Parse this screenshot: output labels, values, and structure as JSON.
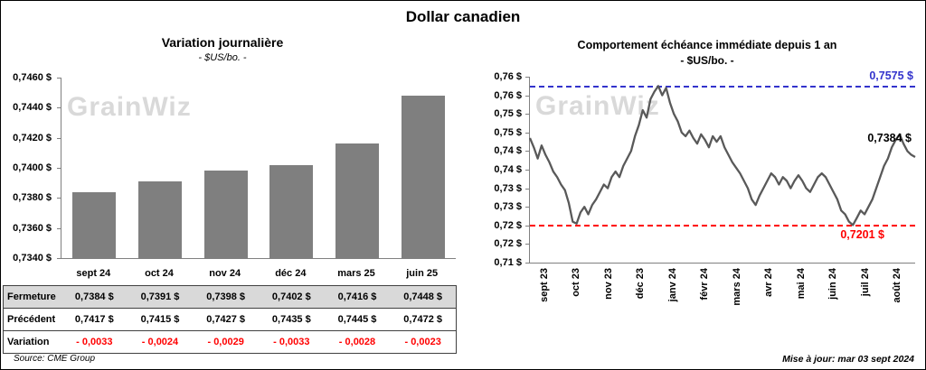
{
  "page": {
    "title": "Dollar canadien"
  },
  "watermark": "GrainWiz",
  "footer": {
    "source": "Source: CME Group",
    "updated": "Mise à jour: mar 03 sept 2024"
  },
  "table": {
    "rows": [
      {
        "label": "Fermeture",
        "style": "closing",
        "bg": "#d9d9d9",
        "values": [
          "0,7384 $",
          "0,7391 $",
          "0,7398 $",
          "0,7402 $",
          "0,7416 $",
          "0,7448 $"
        ]
      },
      {
        "label": "Précédent",
        "style": "previous",
        "bg": "#ffffff",
        "values": [
          "0,7417 $",
          "0,7415 $",
          "0,7427 $",
          "0,7435 $",
          "0,7445 $",
          "0,7472 $"
        ]
      },
      {
        "label": "Variation",
        "style": "variation",
        "bg": "#ffffff",
        "value_color": "#ff0000",
        "values": [
          "- 0,0033",
          "- 0,0024",
          "- 0,0029",
          "- 0,0033",
          "- 0,0028",
          "- 0,0023"
        ]
      }
    ]
  },
  "chart_data": [
    {
      "id": "variation-journaliere",
      "type": "bar",
      "title": "Variation journalière",
      "subtitle": "- $US/bo. -",
      "categories": [
        "sept 24",
        "oct 24",
        "nov 24",
        "déc 24",
        "mars 25",
        "juin 25"
      ],
      "values": [
        0.7384,
        0.7391,
        0.7398,
        0.7402,
        0.7416,
        0.7448
      ],
      "previous": [
        0.7417,
        0.7415,
        0.7427,
        0.7435,
        0.7445,
        0.7472
      ],
      "variation": [
        -0.0033,
        -0.0024,
        -0.0029,
        -0.0033,
        -0.0028,
        -0.0023
      ],
      "ylim": [
        0.734,
        0.746
      ],
      "ytick_labels": [
        "0,7460 $",
        "0,7440 $",
        "0,7420 $",
        "0,7400 $",
        "0,7380 $",
        "0,7360 $",
        "0,7340 $"
      ],
      "bar_color": "#7f7f7f",
      "grid": false
    },
    {
      "id": "comportement-echeance-1-an",
      "type": "line",
      "title": "Comportement échéance immédiate depuis 1 an",
      "subtitle": "- $US/bo. -",
      "x_labels": [
        "sept 23",
        "oct 23",
        "nov 23",
        "déc 23",
        "janv 24",
        "févr 24",
        "mars 24",
        "avr 24",
        "mai 24",
        "juin 24",
        "juil 24",
        "août 24"
      ],
      "values": [
        0.7435,
        0.741,
        0.738,
        0.7415,
        0.739,
        0.737,
        0.7345,
        0.733,
        0.731,
        0.7295,
        0.726,
        0.721,
        0.7205,
        0.7235,
        0.725,
        0.723,
        0.7255,
        0.727,
        0.729,
        0.731,
        0.73,
        0.733,
        0.7345,
        0.733,
        0.736,
        0.738,
        0.74,
        0.744,
        0.747,
        0.751,
        0.749,
        0.754,
        0.756,
        0.7575,
        0.755,
        0.757,
        0.753,
        0.75,
        0.748,
        0.745,
        0.744,
        0.7455,
        0.7435,
        0.742,
        0.7445,
        0.743,
        0.741,
        0.744,
        0.7425,
        0.744,
        0.741,
        0.739,
        0.737,
        0.7355,
        0.734,
        0.732,
        0.73,
        0.727,
        0.7255,
        0.728,
        0.73,
        0.732,
        0.734,
        0.733,
        0.731,
        0.733,
        0.732,
        0.73,
        0.732,
        0.7335,
        0.732,
        0.73,
        0.729,
        0.731,
        0.733,
        0.734,
        0.733,
        0.731,
        0.729,
        0.727,
        0.724,
        0.723,
        0.721,
        0.7201,
        0.722,
        0.724,
        0.723,
        0.725,
        0.727,
        0.73,
        0.733,
        0.736,
        0.738,
        0.741,
        0.743,
        0.7445,
        0.742,
        0.74,
        0.739,
        0.7384
      ],
      "ylim": [
        0.71,
        0.76
      ],
      "ytick_labels": [
        "0,76 $",
        "0,76 $",
        "0,75 $",
        "0,75 $",
        "0,74 $",
        "0,74 $",
        "0,73 $",
        "0,73 $",
        "0,72 $",
        "0,72 $",
        "0,71 $"
      ],
      "line_color": "#595959",
      "high_line": {
        "value": 0.7575,
        "label": "0,7575 $",
        "color": "#3333cc"
      },
      "low_line": {
        "value": 0.7201,
        "label": "0,7201 $",
        "color": "#ff0000"
      },
      "last_label": {
        "value": 0.7384,
        "label": "0,7384 $",
        "color": "#000000"
      },
      "grid": false
    }
  ]
}
